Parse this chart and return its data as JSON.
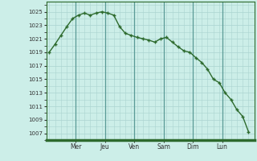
{
  "y_data": [
    1019.0,
    1020.2,
    1021.5,
    1022.8,
    1024.0,
    1024.5,
    1024.8,
    1024.5,
    1024.8,
    1025.0,
    1024.8,
    1024.5,
    1022.8,
    1021.8,
    1021.5,
    1021.2,
    1021.0,
    1020.8,
    1020.5,
    1021.0,
    1021.2,
    1020.5,
    1019.8,
    1019.2,
    1019.0,
    1018.2,
    1017.5,
    1016.5,
    1015.0,
    1014.5,
    1013.0,
    1012.0,
    1010.5,
    1009.5,
    1007.2
  ],
  "day_labels": [
    "Mer",
    "Jeu",
    "Ven",
    "Sam",
    "Dim",
    "Lun"
  ],
  "day_x": [
    4.5,
    9.5,
    14.5,
    19.5,
    24.5,
    29.5
  ],
  "day_vlines": [
    4.5,
    9.5,
    14.5,
    19.5,
    24.5,
    29.5
  ],
  "yticks": [
    1007,
    1009,
    1011,
    1013,
    1015,
    1017,
    1019,
    1021,
    1023,
    1025
  ],
  "ylim": [
    1006.0,
    1026.5
  ],
  "xlim": [
    -0.5,
    35.0
  ],
  "line_color": "#2d6a2d",
  "marker_color": "#2d6a2d",
  "bg_color": "#cceee8",
  "grid_minor_color": "#aad4d0",
  "grid_major_color": "#5a9a96",
  "spine_color": "#2d6a2d",
  "tick_color": "#333333",
  "bottom_line_color": "#2d6a2d"
}
